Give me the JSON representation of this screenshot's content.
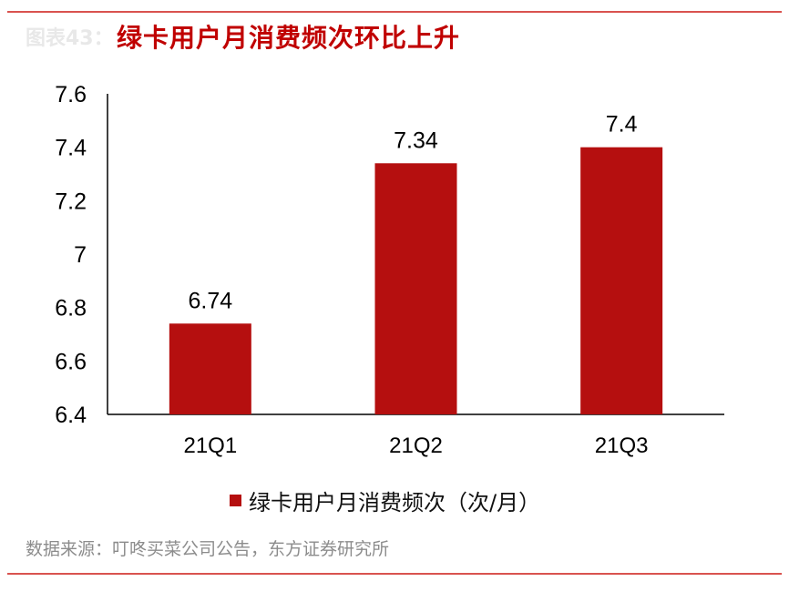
{
  "figure_label": "图表43：",
  "title": "绿卡用户月消费频次环比上升",
  "colors": {
    "bar": "#b50f0f",
    "title": "#c00000",
    "rule": "#d9534f"
  },
  "source": "数据来源：叮咚买菜公司公告，东方证券研究所",
  "chart_data": {
    "type": "bar",
    "categories": [
      "21Q1",
      "21Q2",
      "21Q3"
    ],
    "series": [
      {
        "name": "绿卡用户月消费频次（次/月）",
        "values": [
          6.74,
          7.34,
          7.4
        ]
      }
    ],
    "data_labels": [
      "6.74",
      "7.34",
      "7.4"
    ],
    "yticks": [
      "6.4",
      "6.6",
      "6.8",
      "7",
      "7.2",
      "7.4",
      "7.6"
    ],
    "ylim": [
      6.4,
      7.6
    ],
    "grid": false,
    "legend_position": "bottom"
  }
}
